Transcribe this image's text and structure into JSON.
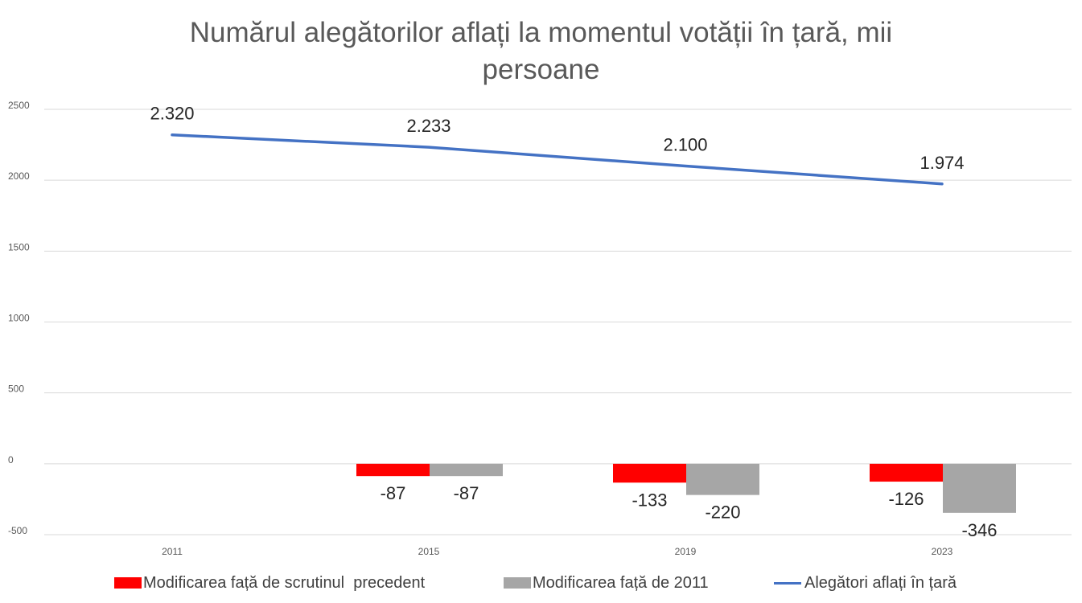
{
  "chart_data": {
    "type": "bar",
    "title_lines": [
      "Numărul alegătorilor aflați la momentul votății în țară, mii",
      "persoane"
    ],
    "categories": [
      "2011",
      "2015",
      "2019",
      "2023"
    ],
    "y_ticks": [
      "2500",
      "2000",
      "1500",
      "1000",
      "500",
      "0",
      "-500"
    ],
    "ylim": [
      -500,
      2500
    ],
    "grid": true,
    "legend_position": "bottom",
    "series": [
      {
        "name": "Modificarea față de scrutinul  precedent",
        "kind": "bar",
        "color": "#ff0000",
        "values": [
          null,
          -87,
          -133,
          -126
        ],
        "labels": [
          "",
          "-87",
          "-133",
          "-126"
        ]
      },
      {
        "name": "Modificarea față de 2011",
        "kind": "bar",
        "color": "#a6a6a6",
        "values": [
          null,
          -87,
          -220,
          -346
        ],
        "labels": [
          "",
          "-87",
          "-220",
          "-346"
        ]
      },
      {
        "name": "Alegători aflați în țară",
        "kind": "line",
        "color": "#4472c4",
        "values": [
          2320,
          2233,
          2100,
          1974
        ],
        "labels": [
          "2.320",
          "2.233",
          "2.100",
          "1.974"
        ]
      }
    ]
  }
}
